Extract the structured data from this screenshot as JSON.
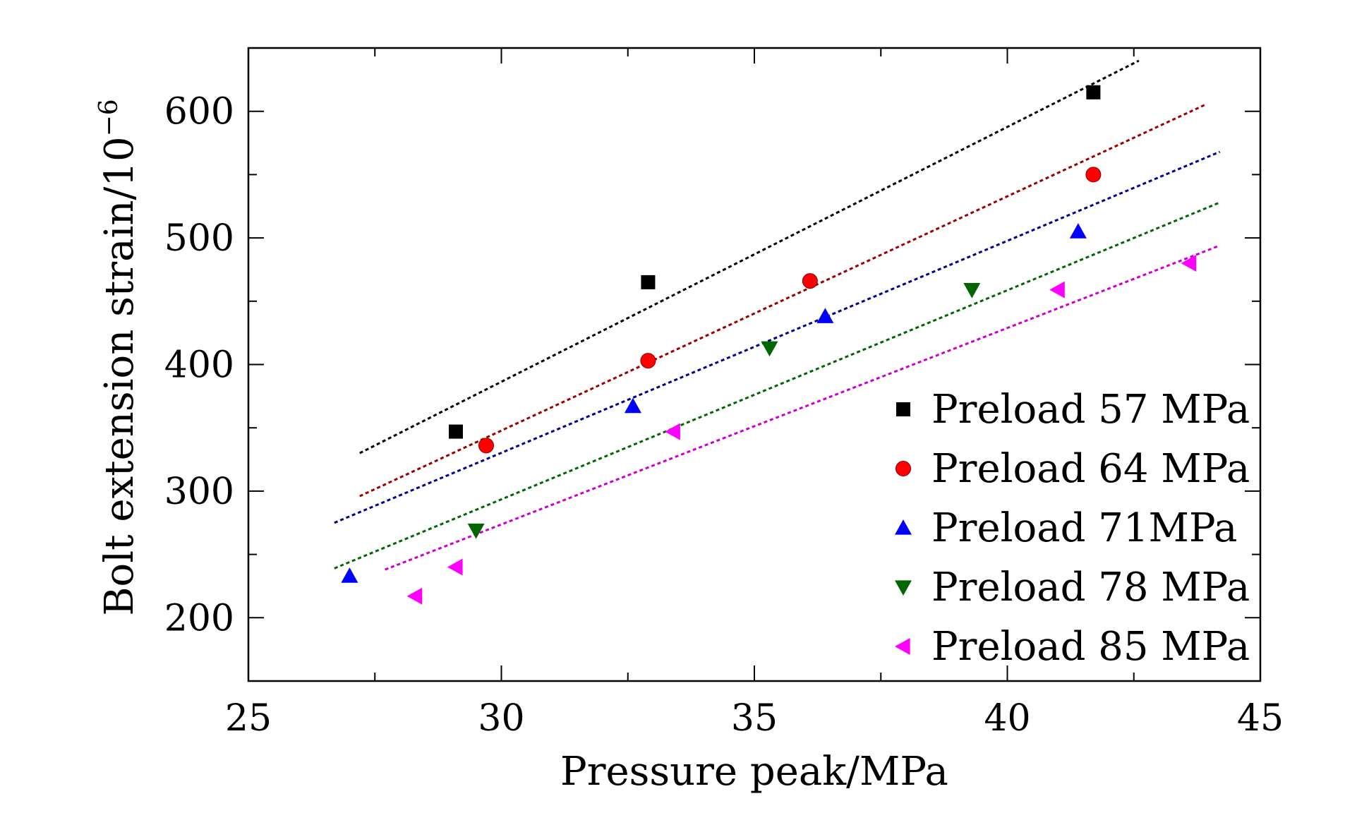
{
  "chart_data": {
    "type": "scatter",
    "xlabel": "Pressure peak/MPa",
    "ylabel": "Bolt extension strain/10",
    "ylabel_superscript": "−6",
    "xlim": [
      25,
      45
    ],
    "ylim": [
      150,
      650
    ],
    "x_ticks": [
      25,
      30,
      35,
      40,
      45
    ],
    "y_ticks": [
      200,
      300,
      400,
      500,
      600
    ],
    "x_tick_labels": [
      "25",
      "30",
      "35",
      "40",
      "45"
    ],
    "y_tick_labels": [
      "200",
      "300",
      "400",
      "500",
      "600"
    ],
    "legend_position": "bottom-right",
    "grid": false,
    "series": [
      {
        "name": "Preload 57 MPa",
        "marker": "square",
        "color": "#000000",
        "points": [
          [
            29.1,
            347
          ],
          [
            32.9,
            465
          ],
          [
            41.7,
            615
          ]
        ],
        "fit": [
          [
            27.2,
            330
          ],
          [
            42.6,
            640
          ]
        ]
      },
      {
        "name": "Preload 64 MPa",
        "marker": "circle",
        "color": "#ff0000",
        "line_color": "#990000",
        "points": [
          [
            29.7,
            336
          ],
          [
            32.9,
            403
          ],
          [
            36.1,
            466
          ],
          [
            41.7,
            550
          ]
        ],
        "fit": [
          [
            27.2,
            296
          ],
          [
            43.9,
            605
          ]
        ]
      },
      {
        "name": "Preload 71MPa",
        "marker": "triangle-up",
        "color": "#0000ff",
        "line_color": "#000088",
        "points": [
          [
            27.0,
            233
          ],
          [
            32.6,
            367
          ],
          [
            36.4,
            438
          ],
          [
            41.4,
            505
          ]
        ],
        "fit": [
          [
            26.7,
            275
          ],
          [
            44.2,
            568
          ]
        ]
      },
      {
        "name": "Preload 78 MPa",
        "marker": "triangle-down",
        "color": "#006600",
        "points": [
          [
            29.5,
            269
          ],
          [
            35.3,
            413
          ],
          [
            39.3,
            459
          ]
        ],
        "fit": [
          [
            26.7,
            239
          ],
          [
            44.2,
            528
          ]
        ]
      },
      {
        "name": "Preload 85 MPa",
        "marker": "triangle-left",
        "color": "#ff00ff",
        "line_color": "#cc00cc",
        "points": [
          [
            28.3,
            217
          ],
          [
            29.1,
            240
          ],
          [
            33.4,
            347
          ],
          [
            41.0,
            459
          ],
          [
            43.6,
            480
          ]
        ],
        "fit": [
          [
            27.7,
            238
          ],
          [
            44.2,
            494
          ]
        ]
      }
    ]
  }
}
